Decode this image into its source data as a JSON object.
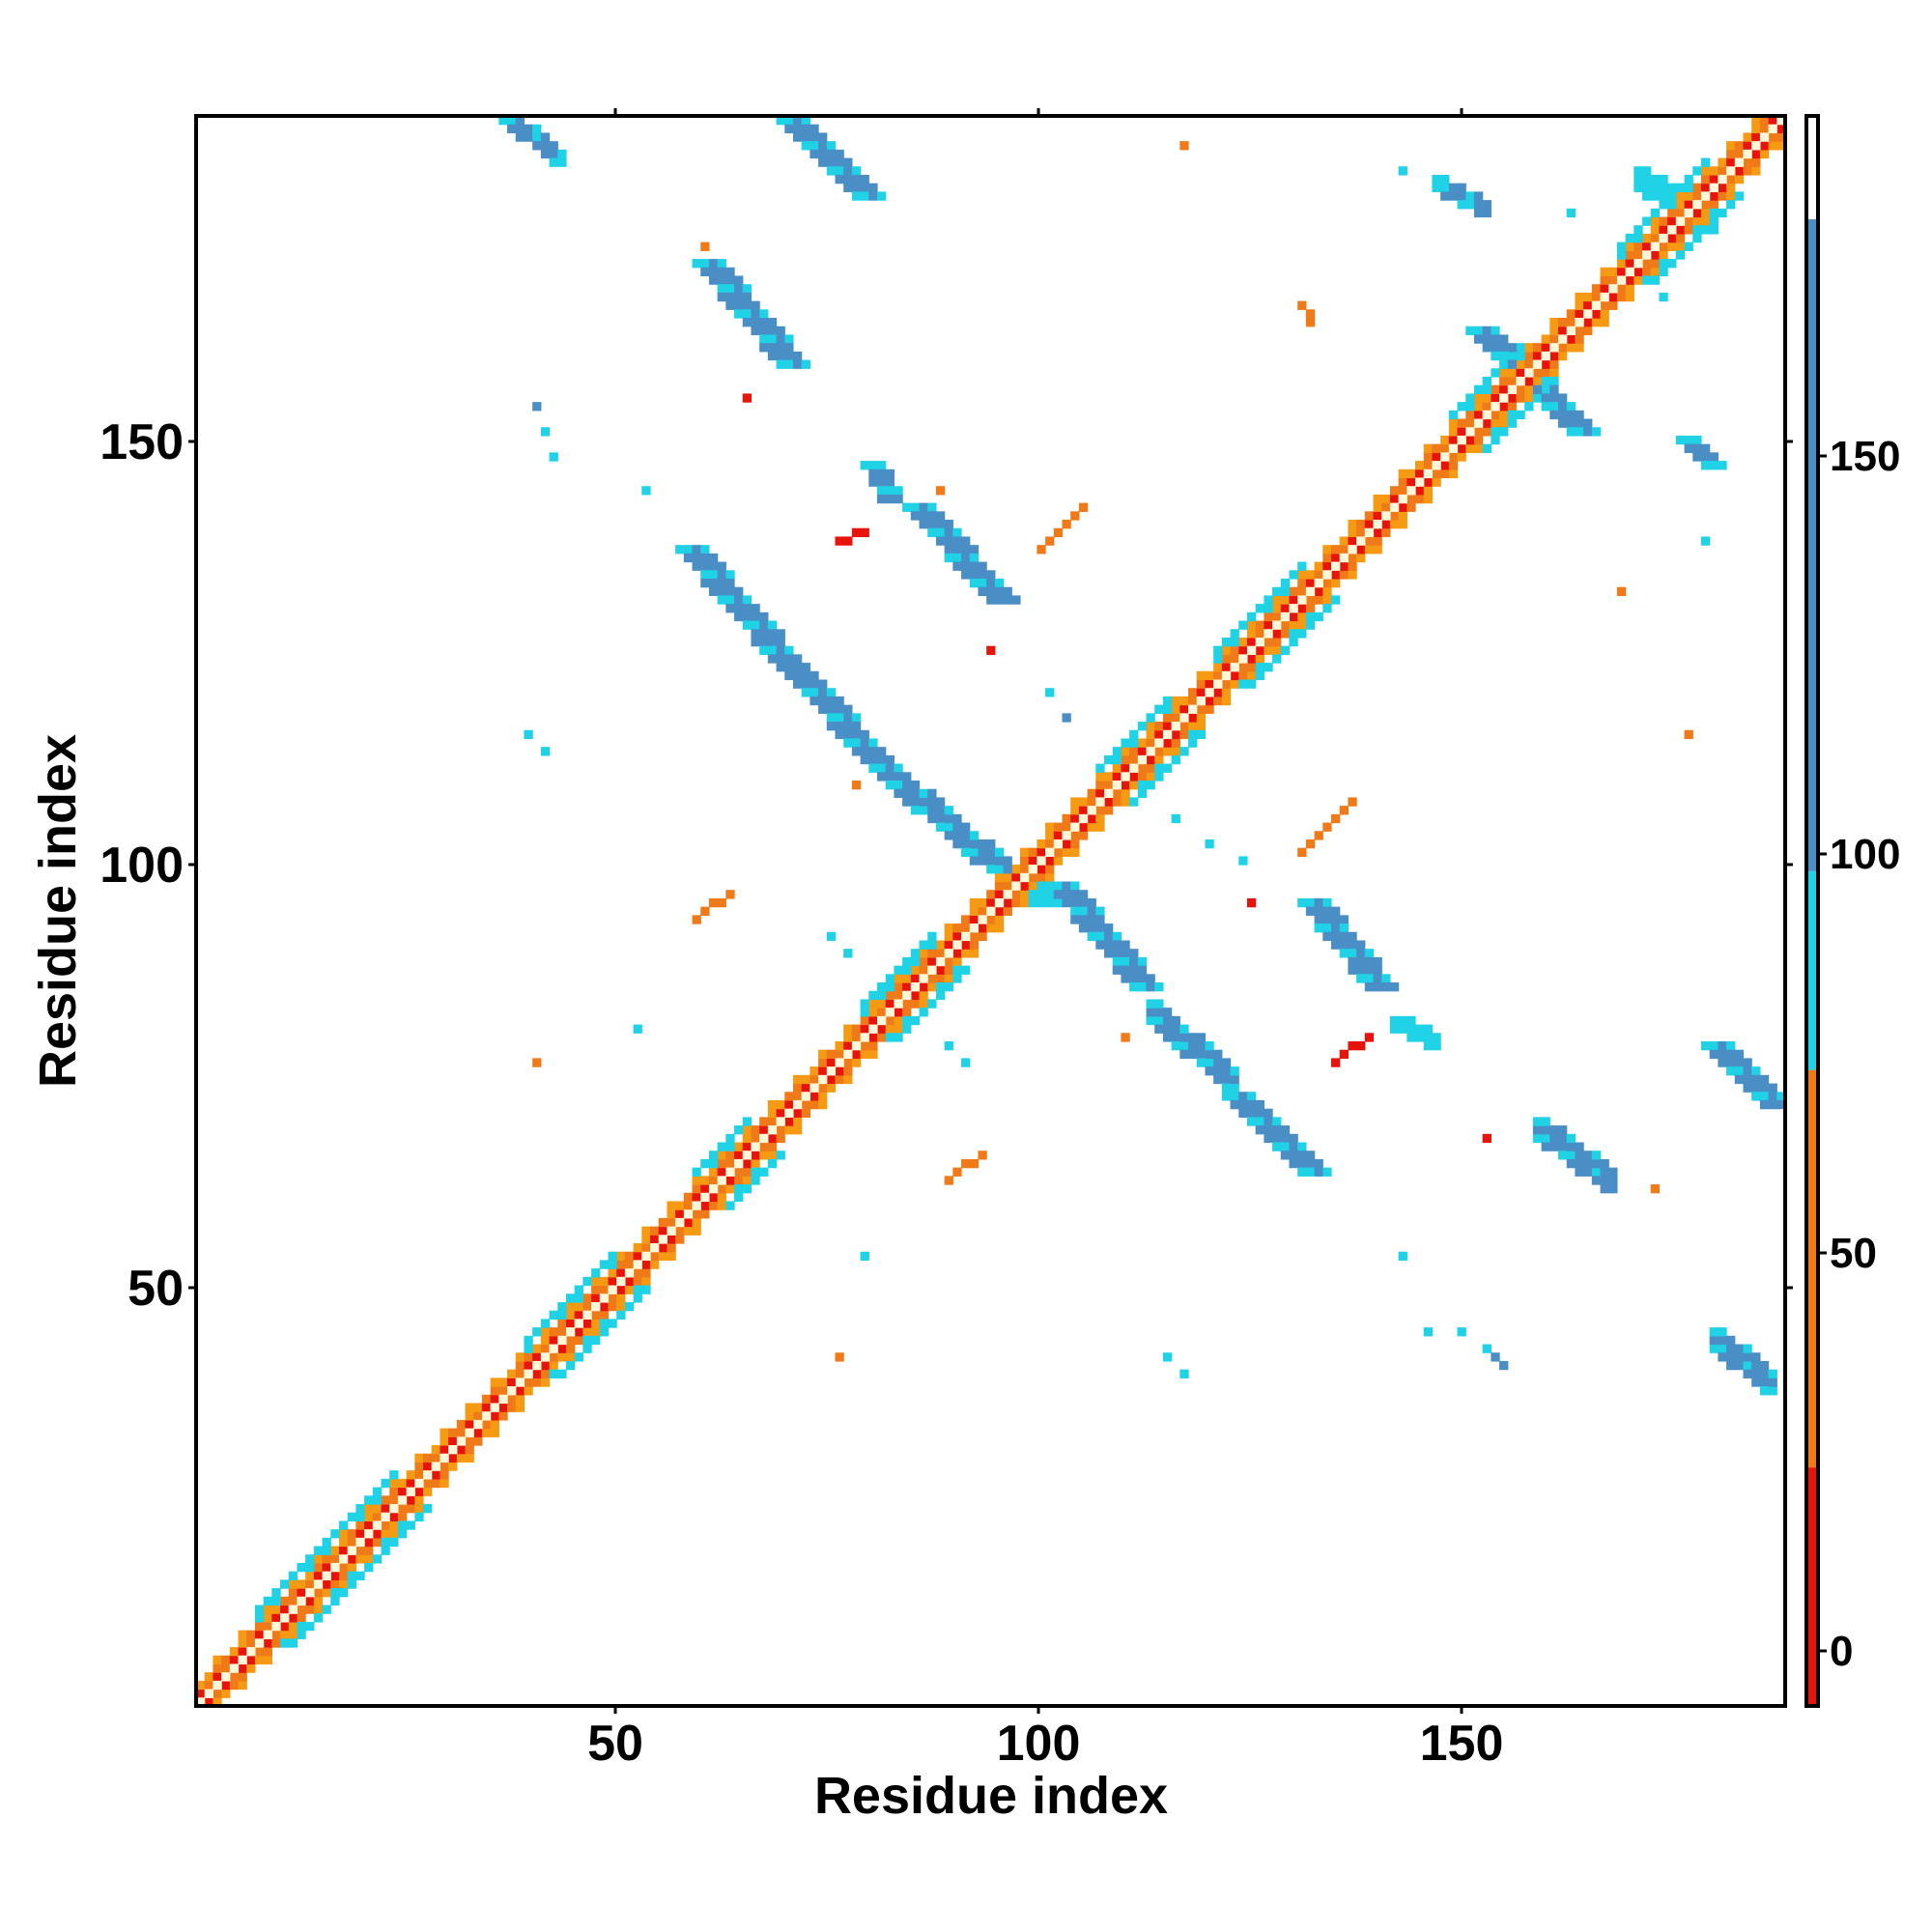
{
  "chart_data": {
    "type": "heatmap",
    "title": "",
    "xlabel": "Residue index",
    "ylabel": "Residue index",
    "xlim": [
      1,
      189
    ],
    "ylim": [
      1,
      189
    ],
    "x_ticks": [
      50,
      100,
      150
    ],
    "y_ticks": [
      50,
      100,
      150
    ],
    "grid": false,
    "legend": "right",
    "colorbar": {
      "range": [
        -5,
        195
      ],
      "ticks": [
        0,
        50,
        100,
        150
      ],
      "bands": [
        {
          "from": -5,
          "to": 25,
          "color": "#e8140c"
        },
        {
          "from": 25,
          "to": 75,
          "color": "#f07a18"
        },
        {
          "from": 75,
          "to": 100,
          "color": "#1fd2e6"
        },
        {
          "from": 100,
          "to": 182,
          "color": "#4a8ec6"
        },
        {
          "from": 182,
          "to": 195,
          "color": "#ffffff"
        }
      ]
    },
    "palette": {
      "diag": "#fff8d8",
      "near": "#e8140c",
      "mid": "#f07a18",
      "light_orange": "#f59a12",
      "cyan": "#1fd2e6",
      "blue": "#4a8ec6"
    },
    "diagonal": {
      "start": 1,
      "end": 189
    },
    "segments": [
      {
        "from": [
          37,
          189
        ],
        "to": [
          43,
          184
        ],
        "color": "blue",
        "width": 2
      },
      {
        "from": [
          70,
          189
        ],
        "to": [
          79,
          180
        ],
        "color": "blue",
        "width": 3
      },
      {
        "from": [
          60,
          172
        ],
        "to": [
          70,
          160
        ],
        "color": "blue",
        "width": 3
      },
      {
        "from": [
          148,
          181
        ],
        "to": [
          153,
          178
        ],
        "color": "blue",
        "width": 2
      },
      {
        "from": [
          152,
          164
        ],
        "to": [
          164,
          152
        ],
        "color": "blue",
        "width": 3
      },
      {
        "from": [
          172,
          181
        ],
        "to": [
          180,
          176
        ],
        "color": "cyan",
        "width": 3
      },
      {
        "from": [
          177,
          151
        ],
        "to": [
          180,
          148
        ],
        "color": "blue",
        "width": 2
      },
      {
        "from": [
          85,
          143
        ],
        "to": [
          95,
          132
        ],
        "color": "blue",
        "width": 3
      },
      {
        "from": [
          80,
          148
        ],
        "to": [
          82,
          144
        ],
        "color": "blue",
        "width": 2
      },
      {
        "from": [
          58,
          138
        ],
        "to": [
          70,
          124
        ],
        "color": "blue",
        "width": 3
      },
      {
        "from": [
          70,
          124
        ],
        "to": [
          82,
          111
        ],
        "color": "blue",
        "width": 3
      },
      {
        "from": [
          83,
          110
        ],
        "to": [
          97,
          98
        ],
        "color": "blue",
        "width": 3
      },
      {
        "from": [
          96,
          100
        ],
        "to": [
          99,
          96
        ],
        "color": "cyan",
        "width": 4
      },
      {
        "from": [
          102,
          98
        ],
        "to": [
          112,
          86
        ],
        "color": "blue",
        "width": 3
      },
      {
        "from": [
          114,
          82
        ],
        "to": [
          123,
          74
        ],
        "color": "blue",
        "width": 3
      },
      {
        "from": [
          123,
          73
        ],
        "to": [
          132,
          64
        ],
        "color": "blue",
        "width": 3
      },
      {
        "from": [
          132,
          96
        ],
        "to": [
          140,
          86
        ],
        "color": "blue",
        "width": 3
      },
      {
        "from": [
          143,
          81
        ],
        "to": [
          147,
          79
        ],
        "color": "cyan",
        "width": 2
      },
      {
        "from": [
          180,
          79
        ],
        "to": [
          187,
          72
        ],
        "color": "blue",
        "width": 3
      },
      {
        "from": [
          160,
          68
        ],
        "to": [
          168,
          62
        ],
        "color": "blue",
        "width": 3
      },
      {
        "from": [
          181,
          43
        ],
        "to": [
          187,
          38
        ],
        "color": "blue",
        "width": 3
      },
      {
        "from": [
          154,
          43
        ],
        "to": [
          156,
          41
        ],
        "color": "blue",
        "width": 1
      },
      {
        "from": [
          132,
          167
        ],
        "to": [
          133,
          165
        ],
        "color": "mid",
        "width": 1
      },
      {
        "from": [
          101,
          138
        ],
        "to": [
          106,
          143
        ],
        "color": "mid",
        "width": 1
      },
      {
        "from": [
          77,
          139
        ],
        "to": [
          80,
          140
        ],
        "color": "near",
        "width": 1
      },
      {
        "from": [
          132,
          102
        ],
        "to": [
          138,
          108
        ],
        "color": "mid",
        "width": 1
      },
      {
        "from": [
          60,
          94
        ],
        "to": [
          64,
          97
        ],
        "color": "mid",
        "width": 1
      },
      {
        "from": [
          90,
          63
        ],
        "to": [
          94,
          66
        ],
        "color": "mid",
        "width": 1
      },
      {
        "from": [
          136,
          77
        ],
        "to": [
          140,
          80
        ],
        "color": "near",
        "width": 1
      },
      {
        "from": [
          81,
          84
        ],
        "to": [
          85,
          88
        ],
        "color": "cyan",
        "width": 3
      }
    ],
    "points": [
      {
        "x": 118,
        "y": 186,
        "color": "mid"
      },
      {
        "x": 61,
        "y": 174,
        "color": "mid"
      },
      {
        "x": 144,
        "y": 183,
        "color": "cyan"
      },
      {
        "x": 164,
        "y": 178,
        "color": "cyan"
      },
      {
        "x": 175,
        "y": 168,
        "color": "cyan"
      },
      {
        "x": 66,
        "y": 156,
        "color": "near"
      },
      {
        "x": 41,
        "y": 155,
        "color": "blue"
      },
      {
        "x": 42,
        "y": 152,
        "color": "cyan"
      },
      {
        "x": 43,
        "y": 149,
        "color": "cyan"
      },
      {
        "x": 54,
        "y": 145,
        "color": "cyan"
      },
      {
        "x": 89,
        "y": 145,
        "color": "mid"
      },
      {
        "x": 170,
        "y": 133,
        "color": "mid"
      },
      {
        "x": 180,
        "y": 139,
        "color": "cyan"
      },
      {
        "x": 95,
        "y": 126,
        "color": "near"
      },
      {
        "x": 68,
        "y": 127,
        "color": "mid"
      },
      {
        "x": 102,
        "y": 121,
        "color": "cyan"
      },
      {
        "x": 104,
        "y": 118,
        "color": "blue"
      },
      {
        "x": 40,
        "y": 116,
        "color": "cyan"
      },
      {
        "x": 42,
        "y": 114,
        "color": "cyan"
      },
      {
        "x": 178,
        "y": 116,
        "color": "mid"
      },
      {
        "x": 79,
        "y": 110,
        "color": "mid"
      },
      {
        "x": 117,
        "y": 106,
        "color": "cyan"
      },
      {
        "x": 121,
        "y": 103,
        "color": "cyan"
      },
      {
        "x": 125,
        "y": 101,
        "color": "cyan"
      },
      {
        "x": 126,
        "y": 96,
        "color": "near"
      },
      {
        "x": 76,
        "y": 92,
        "color": "cyan"
      },
      {
        "x": 78,
        "y": 90,
        "color": "cyan"
      },
      {
        "x": 53,
        "y": 81,
        "color": "cyan"
      },
      {
        "x": 41,
        "y": 77,
        "color": "mid"
      },
      {
        "x": 90,
        "y": 79,
        "color": "cyan"
      },
      {
        "x": 92,
        "y": 77,
        "color": "cyan"
      },
      {
        "x": 111,
        "y": 80,
        "color": "mid"
      },
      {
        "x": 154,
        "y": 68,
        "color": "near"
      },
      {
        "x": 174,
        "y": 62,
        "color": "mid"
      },
      {
        "x": 80,
        "y": 54,
        "color": "cyan"
      },
      {
        "x": 144,
        "y": 54,
        "color": "cyan"
      },
      {
        "x": 147,
        "y": 45,
        "color": "cyan"
      },
      {
        "x": 151,
        "y": 45,
        "color": "cyan"
      },
      {
        "x": 77,
        "y": 42,
        "color": "mid"
      },
      {
        "x": 116,
        "y": 42,
        "color": "cyan"
      },
      {
        "x": 118,
        "y": 40,
        "color": "cyan"
      }
    ]
  }
}
